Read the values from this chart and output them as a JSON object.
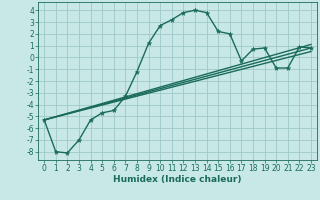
{
  "xlabel": "Humidex (Indice chaleur)",
  "background_color": "#c8e8e8",
  "grid_color": "#a0c8c8",
  "line_color": "#1a6b5a",
  "xlim": [
    -0.5,
    23.5
  ],
  "ylim": [
    -8.7,
    4.7
  ],
  "xticks": [
    0,
    1,
    2,
    3,
    4,
    5,
    6,
    7,
    8,
    9,
    10,
    11,
    12,
    13,
    14,
    15,
    16,
    17,
    18,
    19,
    20,
    21,
    22,
    23
  ],
  "yticks": [
    4,
    3,
    2,
    1,
    0,
    -1,
    -2,
    -3,
    -4,
    -5,
    -6,
    -7,
    -8
  ],
  "curve1_x": [
    0,
    1,
    2,
    3,
    4,
    5,
    6,
    7,
    8,
    9,
    10,
    11,
    12,
    13,
    14,
    15,
    16,
    17,
    18,
    19,
    20,
    21,
    22,
    23
  ],
  "curve1_y": [
    -5.3,
    -8.0,
    -8.1,
    -7.0,
    -5.3,
    -4.7,
    -4.5,
    -3.3,
    -1.2,
    1.2,
    2.7,
    3.2,
    3.8,
    4.0,
    3.8,
    2.2,
    2.0,
    -0.3,
    0.7,
    0.8,
    -0.9,
    -0.9,
    0.9,
    0.8
  ],
  "line1_x": [
    0,
    23
  ],
  "line1_y": [
    -5.3,
    0.5
  ],
  "line2_x": [
    0,
    23
  ],
  "line2_y": [
    -5.3,
    0.8
  ],
  "line3_x": [
    0,
    23
  ],
  "line3_y": [
    -5.3,
    1.1
  ],
  "marker": "*",
  "markersize": 3.5,
  "linewidth": 1.0,
  "tick_fontsize": 5.5,
  "xlabel_fontsize": 6.5
}
